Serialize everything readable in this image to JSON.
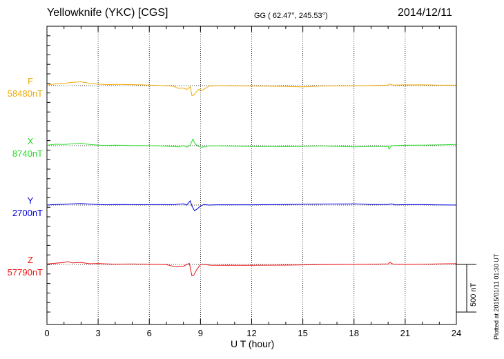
{
  "header": {
    "station": "Yellowknife (YKC)  [CGS]",
    "coords": "GG ( 62.47°, 245.53°)",
    "date": "2014/12/11"
  },
  "footer": {
    "plotted_note": "Plotted at 2015/01/11 01:30 UT"
  },
  "scale_bar": {
    "label": "500 nT",
    "value": 500
  },
  "chart_data": {
    "type": "line",
    "xlabel": "U T (hour)",
    "xlim": [
      0,
      24
    ],
    "xticks": [
      "0",
      "3",
      "6",
      "9",
      "12",
      "15",
      "18",
      "21",
      "24"
    ],
    "units": "nT",
    "grid": true,
    "series": [
      {
        "name": "F",
        "baseline_label": "58480nT",
        "baseline": 58480,
        "color": "#f0a800",
        "x": [
          0,
          0.5,
          1.0,
          1.5,
          2.0,
          2.5,
          3.0,
          3.5,
          4.0,
          5.0,
          6.0,
          7.0,
          7.4,
          7.7,
          8.0,
          8.2,
          8.4,
          8.5,
          8.6,
          8.75,
          8.9,
          9.1,
          9.5,
          10,
          12,
          14,
          15,
          16,
          18,
          19,
          20,
          20.1,
          20.3,
          21,
          22,
          23,
          24
        ],
        "y": [
          58485,
          58498,
          58504,
          58514,
          58520,
          58504,
          58496,
          58490,
          58494,
          58490,
          58486,
          58478,
          58474,
          58452,
          58455,
          58440,
          58468,
          58375,
          58380,
          58412,
          58440,
          58430,
          58475,
          58480,
          58476,
          58472,
          58466,
          58476,
          58478,
          58481,
          58486,
          58498,
          58485,
          58487,
          58488,
          58484,
          58484
        ]
      },
      {
        "name": "X",
        "baseline_label": "8740nT",
        "baseline": 8740,
        "color": "#22dd22",
        "x": [
          0,
          0.5,
          1.0,
          1.5,
          2.0,
          2.5,
          3.0,
          3.5,
          4.0,
          5.0,
          6.0,
          7.0,
          7.4,
          7.7,
          8.0,
          8.2,
          8.4,
          8.55,
          8.7,
          8.9,
          9.1,
          9.5,
          10,
          12,
          14,
          15,
          16,
          18,
          19,
          20,
          20.05,
          20.15,
          20.3,
          21,
          22,
          23,
          24
        ],
        "y": [
          8744,
          8755,
          8752,
          8760,
          8765,
          8752,
          8746,
          8743,
          8745,
          8742,
          8741,
          8735,
          8732,
          8728,
          8740,
          8725,
          8745,
          8808,
          8755,
          8732,
          8724,
          8738,
          8738,
          8732,
          8730,
          8733,
          8737,
          8728,
          8732,
          8733,
          8705,
          8733,
          8742,
          8744,
          8746,
          8748,
          8752
        ]
      },
      {
        "name": "Y",
        "baseline_label": "2700nT",
        "baseline": 2700,
        "color": "#0000dd",
        "x": [
          0,
          0.5,
          1.0,
          1.5,
          2.0,
          2.5,
          3.0,
          3.5,
          4.0,
          5.0,
          6.0,
          7.0,
          7.5,
          8.0,
          8.2,
          8.4,
          8.5,
          8.65,
          8.8,
          9.0,
          9.2,
          9.5,
          10,
          12,
          14,
          15,
          16,
          18,
          19,
          20,
          20.2,
          20.4,
          21,
          22,
          23,
          24
        ],
        "y": [
          2700,
          2705,
          2708,
          2712,
          2716,
          2710,
          2706,
          2703,
          2706,
          2704,
          2704,
          2704,
          2706,
          2712,
          2700,
          2745,
          2690,
          2640,
          2658,
          2690,
          2705,
          2700,
          2703,
          2703,
          2705,
          2708,
          2710,
          2712,
          2706,
          2706,
          2712,
          2702,
          2704,
          2704,
          2702,
          2700
        ]
      },
      {
        "name": "Z",
        "baseline_label": "57790nT",
        "baseline": 57790,
        "color": "#ee1111",
        "x": [
          0,
          0.5,
          1.0,
          1.2,
          1.5,
          2.0,
          2.5,
          3.0,
          3.5,
          4.0,
          5.0,
          6.0,
          7.0,
          7.4,
          7.7,
          8.0,
          8.2,
          8.35,
          8.5,
          8.6,
          8.8,
          9.0,
          9.3,
          9.6,
          10,
          12,
          14,
          15,
          16,
          18,
          19,
          20,
          20.1,
          20.3,
          21,
          22,
          23,
          24
        ],
        "y": [
          57794,
          57803,
          57810,
          57820,
          57806,
          57811,
          57797,
          57800,
          57796,
          57793,
          57794,
          57792,
          57788,
          57770,
          57765,
          57772,
          57790,
          57800,
          57670,
          57676,
          57740,
          57790,
          57788,
          57782,
          57781,
          57781,
          57783,
          57786,
          57788,
          57790,
          57792,
          57795,
          57812,
          57792,
          57790,
          57792,
          57796,
          57798
        ]
      }
    ]
  }
}
